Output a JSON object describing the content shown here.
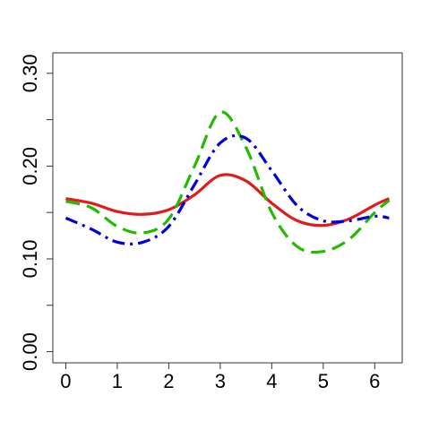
{
  "chart_data": {
    "type": "line",
    "x": [
      0,
      0.5,
      1,
      1.5,
      2,
      2.5,
      3,
      3.5,
      4,
      4.5,
      5,
      5.5,
      6,
      6.28
    ],
    "series": [
      {
        "color": "#e31a1c",
        "linestyle": "solid",
        "values": [
          0.165,
          0.16,
          0.151,
          0.148,
          0.153,
          0.169,
          0.19,
          0.184,
          0.16,
          0.141,
          0.136,
          0.143,
          0.158,
          0.165
        ]
      },
      {
        "color": "#22bb00",
        "linestyle": "dashed",
        "values": [
          0.162,
          0.155,
          0.135,
          0.128,
          0.143,
          0.2,
          0.258,
          0.22,
          0.15,
          0.113,
          0.108,
          0.121,
          0.15,
          0.163
        ]
      },
      {
        "color": "#0000dd",
        "linestyle": "dashdot",
        "values": [
          0.144,
          0.132,
          0.118,
          0.118,
          0.135,
          0.18,
          0.225,
          0.23,
          0.195,
          0.157,
          0.141,
          0.141,
          0.146,
          0.144
        ]
      }
    ],
    "xlim": [
      -0.251,
      6.534
    ],
    "xticks": [
      0,
      1,
      2,
      3,
      4,
      5,
      6
    ],
    "ylim": [
      -0.012,
      0.322
    ],
    "yticks": [
      {
        "value": 0,
        "label": "0.00"
      },
      {
        "value": 0.05
      },
      {
        "value": 0.1,
        "label": "0.10"
      },
      {
        "value": 0.15
      },
      {
        "value": 0.2,
        "label": "0.20"
      },
      {
        "value": 0.25
      },
      {
        "value": 0.3,
        "label": "0.30"
      }
    ],
    "grid": false
  }
}
